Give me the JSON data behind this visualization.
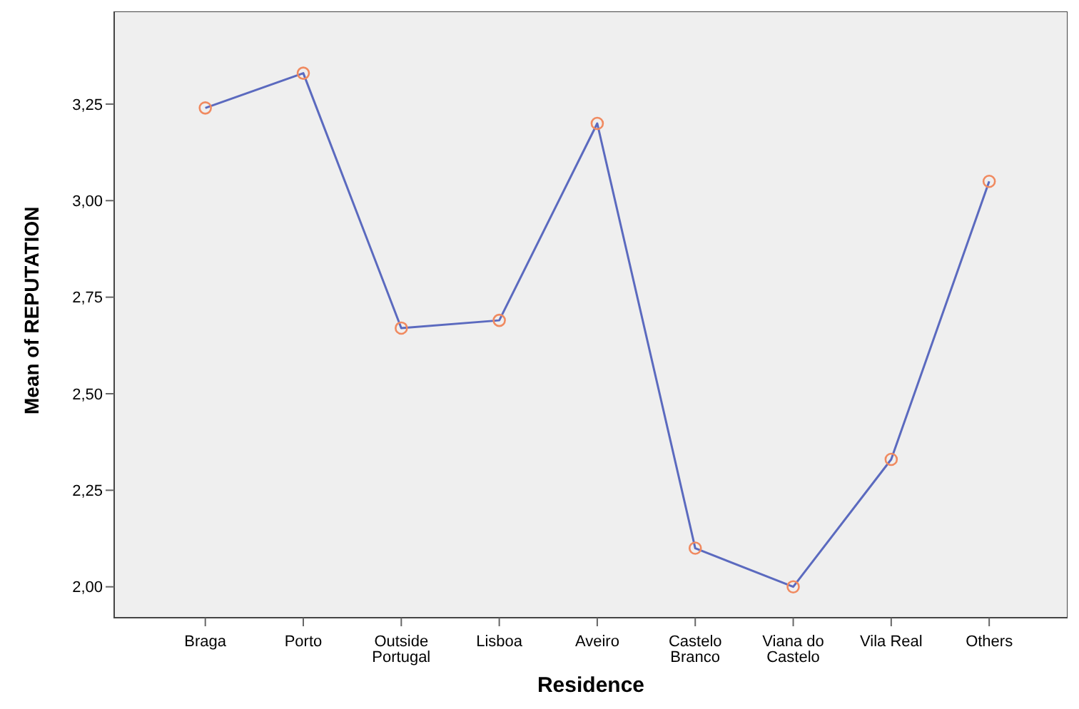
{
  "chart_data": {
    "type": "line",
    "xlabel": "Residence",
    "ylabel": "Mean of REPUTATION",
    "categories": [
      "Braga",
      "Porto",
      "Outside Portugal",
      "Lisboa",
      "Aveiro",
      "Castelo Branco",
      "Viana do Castelo",
      "Vila Real",
      "Others"
    ],
    "series": [
      {
        "color": "#5b6abf",
        "colors": [
          "#f08a60",
          "#f08a60",
          "#f08a60",
          "#f08a60",
          "#f08a60",
          "#f08a60",
          "#f08a60",
          "#f08a60",
          "#f08a60"
        ],
        "values": [
          3.24,
          3.33,
          2.67,
          2.69,
          3.2,
          2.1,
          2.0,
          2.33,
          3.05
        ]
      }
    ],
    "marker": "circle",
    "ylim": [
      1.92,
      3.49
    ],
    "yticks": [
      {
        "value": 2,
        "label": "2,00"
      },
      {
        "value": 2.25,
        "label": "2,25"
      },
      {
        "value": 2.5,
        "label": "2,50"
      },
      {
        "value": 2.75,
        "label": "2,75"
      },
      {
        "value": 3,
        "label": "3,00"
      },
      {
        "value": 3.25,
        "label": "3,25"
      }
    ]
  }
}
